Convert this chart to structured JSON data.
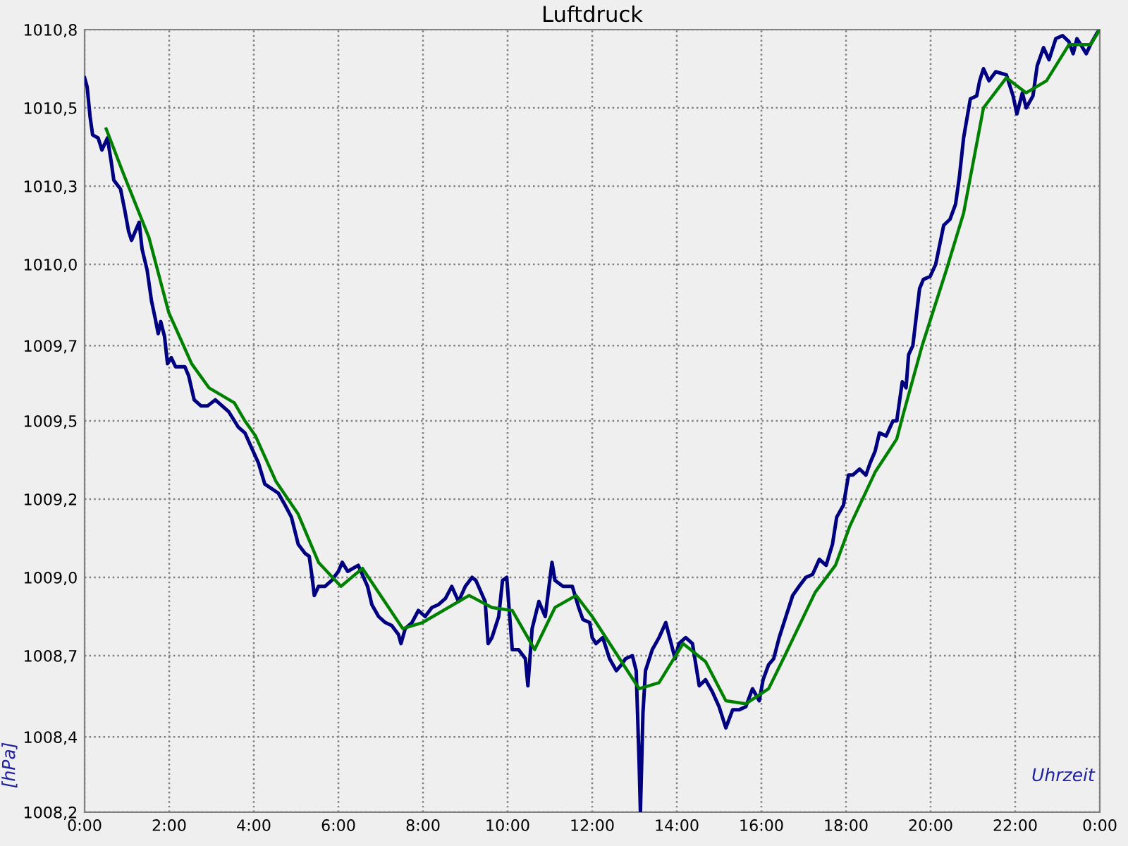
{
  "chart_data": {
    "type": "line",
    "title": "Luftdruck",
    "xlabel": "Uhrzeit",
    "ylabel": "[hPa]",
    "xlim": [
      0,
      24
    ],
    "xticks": [
      {
        "value": 0,
        "label": "0:00"
      },
      {
        "value": 2,
        "label": "2:00"
      },
      {
        "value": 4,
        "label": "4:00"
      },
      {
        "value": 6,
        "label": "6:00"
      },
      {
        "value": 8,
        "label": "8:00"
      },
      {
        "value": 10,
        "label": "10:00"
      },
      {
        "value": 12,
        "label": "12:00"
      },
      {
        "value": 14,
        "label": "14:00"
      },
      {
        "value": 16,
        "label": "16:00"
      },
      {
        "value": 18,
        "label": "18:00"
      },
      {
        "value": 20,
        "label": "20:00"
      },
      {
        "value": 22,
        "label": "22:00"
      },
      {
        "value": 24,
        "label": "0:00"
      }
    ],
    "ylim": [
      1008.2,
      1010.8
    ],
    "yticks": [
      {
        "value": 1008.2,
        "label": "1008,2"
      },
      {
        "value": 1008.45,
        "label": "1008,4"
      },
      {
        "value": 1008.72,
        "label": "1008,7"
      },
      {
        "value": 1008.98,
        "label": "1009,0"
      },
      {
        "value": 1009.24,
        "label": "1009,2"
      },
      {
        "value": 1009.5,
        "label": "1009,5"
      },
      {
        "value": 1009.75,
        "label": "1009,7"
      },
      {
        "value": 1010.02,
        "label": "1010,0"
      },
      {
        "value": 1010.28,
        "label": "1010,3"
      },
      {
        "value": 1010.54,
        "label": "1010,5"
      },
      {
        "value": 1010.8,
        "label": "1010,8"
      }
    ],
    "grid": true,
    "marker": "none",
    "line_style": "solid",
    "series": [
      {
        "color": "#000080",
        "x": [
          0.0,
          0.06,
          0.13,
          0.19,
          0.32,
          0.41,
          0.54,
          0.63,
          0.69,
          0.85,
          0.95,
          1.04,
          1.11,
          1.29,
          1.36,
          1.48,
          1.58,
          1.67,
          1.74,
          1.8,
          1.89,
          1.96,
          2.05,
          2.15,
          2.37,
          2.46,
          2.59,
          2.75,
          2.91,
          3.09,
          3.25,
          3.41,
          3.63,
          3.79,
          3.95,
          4.11,
          4.26,
          4.58,
          4.74,
          4.89,
          5.05,
          5.21,
          5.31,
          5.37,
          5.43,
          5.53,
          5.68,
          5.84,
          6.0,
          6.09,
          6.22,
          6.47,
          6.69,
          6.79,
          6.95,
          7.11,
          7.26,
          7.42,
          7.48,
          7.58,
          7.74,
          7.89,
          8.05,
          8.21,
          8.37,
          8.53,
          8.68,
          8.84,
          9.0,
          9.16,
          9.25,
          9.47,
          9.54,
          9.63,
          9.79,
          9.88,
          9.98,
          10.11,
          10.26,
          10.42,
          10.48,
          10.58,
          10.74,
          10.89,
          11.05,
          11.12,
          11.31,
          11.53,
          11.68,
          11.78,
          11.94,
          12.0,
          12.09,
          12.25,
          12.41,
          12.57,
          12.69,
          12.79,
          12.95,
          13.04,
          13.11,
          13.14,
          13.2,
          13.26,
          13.42,
          13.58,
          13.74,
          13.83,
          13.96,
          14.05,
          14.21,
          14.37,
          14.53,
          14.68,
          14.84,
          15.0,
          15.16,
          15.32,
          15.47,
          15.63,
          15.79,
          15.95,
          16.04,
          16.17,
          16.29,
          16.42,
          16.58,
          16.74,
          16.89,
          17.05,
          17.21,
          17.37,
          17.53,
          17.68,
          17.78,
          17.94,
          18.06,
          18.16,
          18.32,
          18.47,
          18.57,
          18.69,
          18.79,
          18.95,
          19.11,
          19.2,
          19.33,
          19.42,
          19.48,
          19.58,
          19.74,
          19.83,
          19.99,
          20.12,
          20.31,
          20.46,
          20.59,
          20.68,
          20.78,
          20.94,
          21.09,
          21.16,
          21.25,
          21.38,
          21.54,
          21.79,
          21.95,
          22.04,
          22.17,
          22.26,
          22.42,
          22.52,
          22.67,
          22.8,
          22.96,
          23.12,
          23.27,
          23.37,
          23.46,
          23.68,
          23.78,
          23.94,
          24.0
        ],
        "values": [
          1010.64,
          1010.61,
          1010.51,
          1010.45,
          1010.44,
          1010.4,
          1010.44,
          1010.36,
          1010.3,
          1010.27,
          1010.2,
          1010.13,
          1010.1,
          1010.16,
          1010.07,
          1010.0,
          1009.9,
          1009.84,
          1009.79,
          1009.83,
          1009.78,
          1009.69,
          1009.71,
          1009.68,
          1009.68,
          1009.65,
          1009.57,
          1009.55,
          1009.55,
          1009.57,
          1009.55,
          1009.53,
          1009.48,
          1009.46,
          1009.41,
          1009.36,
          1009.29,
          1009.26,
          1009.22,
          1009.18,
          1009.09,
          1009.06,
          1009.05,
          1008.99,
          1008.92,
          1008.95,
          1008.95,
          1008.97,
          1009.0,
          1009.03,
          1009.0,
          1009.02,
          1008.95,
          1008.89,
          1008.85,
          1008.83,
          1008.82,
          1008.79,
          1008.76,
          1008.81,
          1008.83,
          1008.87,
          1008.85,
          1008.88,
          1008.89,
          1008.91,
          1008.95,
          1008.9,
          1008.95,
          1008.98,
          1008.97,
          1008.9,
          1008.76,
          1008.78,
          1008.85,
          1008.97,
          1008.98,
          1008.74,
          1008.74,
          1008.71,
          1008.62,
          1008.81,
          1008.9,
          1008.85,
          1009.03,
          1008.97,
          1008.95,
          1008.95,
          1008.88,
          1008.84,
          1008.83,
          1008.78,
          1008.76,
          1008.78,
          1008.71,
          1008.67,
          1008.69,
          1008.71,
          1008.72,
          1008.67,
          1008.36,
          1008.2,
          1008.53,
          1008.67,
          1008.74,
          1008.78,
          1008.83,
          1008.78,
          1008.71,
          1008.76,
          1008.78,
          1008.76,
          1008.62,
          1008.64,
          1008.6,
          1008.55,
          1008.48,
          1008.54,
          1008.54,
          1008.55,
          1008.61,
          1008.57,
          1008.64,
          1008.69,
          1008.71,
          1008.78,
          1008.85,
          1008.92,
          1008.95,
          1008.98,
          1008.99,
          1009.04,
          1009.02,
          1009.09,
          1009.18,
          1009.22,
          1009.32,
          1009.32,
          1009.34,
          1009.32,
          1009.36,
          1009.4,
          1009.46,
          1009.45,
          1009.5,
          1009.5,
          1009.63,
          1009.61,
          1009.72,
          1009.75,
          1009.94,
          1009.97,
          1009.98,
          1010.02,
          1010.15,
          1010.17,
          1010.22,
          1010.31,
          1010.44,
          1010.57,
          1010.58,
          1010.63,
          1010.67,
          1010.63,
          1010.66,
          1010.65,
          1010.58,
          1010.52,
          1010.59,
          1010.54,
          1010.58,
          1010.68,
          1010.74,
          1010.7,
          1010.77,
          1010.78,
          1010.76,
          1010.72,
          1010.77,
          1010.72,
          1010.75,
          1010.79,
          1010.8
        ]
      },
      {
        "color": "#008000",
        "x": [
          0.51,
          0.95,
          1.52,
          1.99,
          2.53,
          2.94,
          3.54,
          3.79,
          4.04,
          4.52,
          5.05,
          5.53,
          6.06,
          6.57,
          7.52,
          7.99,
          9.09,
          9.63,
          10.11,
          10.64,
          11.12,
          11.62,
          12.0,
          13.11,
          13.58,
          14.15,
          14.68,
          15.16,
          15.63,
          16.17,
          16.52,
          17.27,
          17.75,
          18.09,
          18.69,
          19.2,
          19.33,
          19.8,
          20.37,
          20.78,
          21.25,
          21.79,
          22.26,
          22.74,
          23.27,
          23.78,
          24.0
        ],
        "values": [
          1010.47,
          1010.31,
          1010.11,
          1009.86,
          1009.69,
          1009.61,
          1009.56,
          1009.5,
          1009.45,
          1009.3,
          1009.19,
          1009.03,
          1008.95,
          1009.01,
          1008.81,
          1008.83,
          1008.92,
          1008.88,
          1008.87,
          1008.74,
          1008.88,
          1008.92,
          1008.85,
          1008.61,
          1008.63,
          1008.76,
          1008.7,
          1008.57,
          1008.56,
          1008.61,
          1008.71,
          1008.93,
          1009.02,
          1009.15,
          1009.33,
          1009.44,
          1009.51,
          1009.75,
          1010.0,
          1010.19,
          1010.54,
          1010.64,
          1010.59,
          1010.63,
          1010.75,
          1010.75,
          1010.8
        ]
      }
    ]
  }
}
